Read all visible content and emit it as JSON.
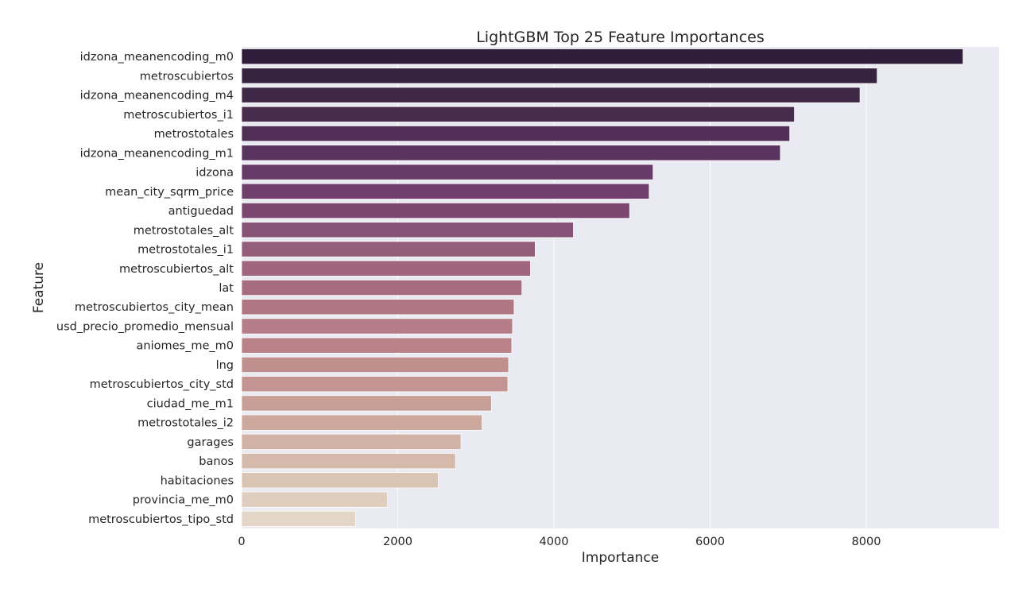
{
  "chart_data": {
    "type": "bar",
    "orientation": "horizontal",
    "title": "LightGBM Top 25 Feature Importances",
    "xlabel": "Importance",
    "ylabel": "Feature",
    "xlim": [
      0,
      9700
    ],
    "xticks": [
      0,
      2000,
      4000,
      6000,
      8000
    ],
    "xtick_labels": [
      "0",
      "2000",
      "4000",
      "6000",
      "8000"
    ],
    "grid": true,
    "background": "#eaeaf2",
    "categories": [
      "idzona_meanencoding_m0",
      "metroscubiertos",
      "idzona_meanencoding_m4",
      "metroscubiertos_i1",
      "metrostotales",
      "idzona_meanencoding_m1",
      "idzona",
      "mean_city_sqrm_price",
      "antiguedad",
      "metrostotales_alt",
      "metrostotales_i1",
      "metroscubiertos_alt",
      "lat",
      "metroscubiertos_city_mean",
      "usd_precio_promedio_mensual",
      "aniomes_me_m0",
      "lng",
      "metroscubiertos_city_std",
      "ciudad_me_m1",
      "metrostotales_i2",
      "garages",
      "banos",
      "habitaciones",
      "provincia_me_m0",
      "metroscubiertos_tipo_std"
    ],
    "values": [
      9240,
      8140,
      7920,
      7080,
      7020,
      6900,
      5270,
      5220,
      4970,
      4250,
      3760,
      3700,
      3590,
      3490,
      3470,
      3460,
      3420,
      3410,
      3200,
      3080,
      2810,
      2740,
      2520,
      1870,
      1460
    ],
    "colors": [
      "#2e1e3b",
      "#36233f",
      "#3f2747",
      "#482c4e",
      "#512f56",
      "#5a345e",
      "#673b67",
      "#703f6b",
      "#7b4770",
      "#865275",
      "#945d7a",
      "#9e657d",
      "#a66c80",
      "#b07783",
      "#b57d87",
      "#b98289",
      "#c0908f",
      "#c39492",
      "#c89f96",
      "#cda89c",
      "#d2b2a4",
      "#d5b9ab",
      "#dac5b5",
      "#dfcdbe",
      "#e3d6c7"
    ]
  }
}
